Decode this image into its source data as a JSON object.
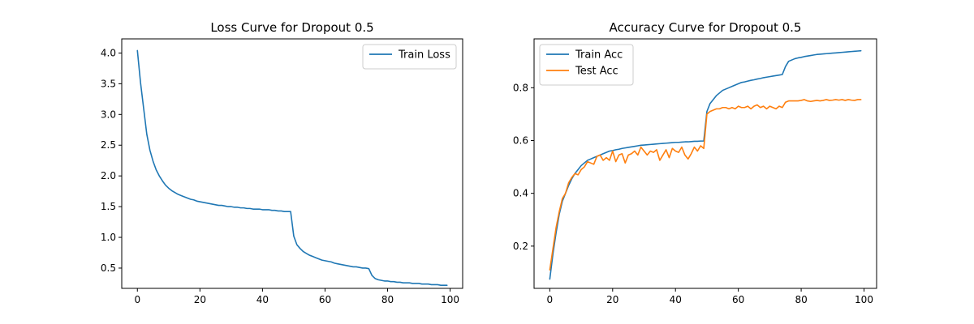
{
  "chart_data": [
    {
      "type": "line",
      "title": "Loss Curve for Dropout 0.5",
      "xlabel": "",
      "ylabel": "",
      "xlim": [
        -5,
        104
      ],
      "ylim": [
        0.17,
        4.23
      ],
      "xticks": [
        0,
        20,
        40,
        60,
        80,
        100
      ],
      "yticks": [
        0.5,
        1.0,
        1.5,
        2.0,
        2.5,
        3.0,
        3.5,
        4.0
      ],
      "ytick_labels": [
        "0.5",
        "1.0",
        "1.5",
        "2.0",
        "2.5",
        "3.0",
        "3.5",
        "4.0"
      ],
      "legend_position": "top-right",
      "series": [
        {
          "name": "Train Loss",
          "color": "#1f77b4",
          "values": [
            4.04,
            3.52,
            3.1,
            2.68,
            2.42,
            2.24,
            2.1,
            2.0,
            1.92,
            1.85,
            1.8,
            1.76,
            1.73,
            1.7,
            1.68,
            1.66,
            1.64,
            1.62,
            1.61,
            1.59,
            1.58,
            1.57,
            1.56,
            1.55,
            1.54,
            1.53,
            1.52,
            1.52,
            1.51,
            1.5,
            1.5,
            1.49,
            1.49,
            1.48,
            1.48,
            1.47,
            1.47,
            1.46,
            1.46,
            1.46,
            1.45,
            1.45,
            1.45,
            1.44,
            1.44,
            1.43,
            1.43,
            1.42,
            1.42,
            1.42,
            1.02,
            0.88,
            0.82,
            0.77,
            0.74,
            0.71,
            0.69,
            0.67,
            0.65,
            0.63,
            0.62,
            0.61,
            0.6,
            0.58,
            0.57,
            0.56,
            0.55,
            0.54,
            0.53,
            0.52,
            0.52,
            0.51,
            0.5,
            0.5,
            0.49,
            0.38,
            0.33,
            0.31,
            0.3,
            0.29,
            0.29,
            0.28,
            0.28,
            0.27,
            0.27,
            0.26,
            0.26,
            0.26,
            0.25,
            0.25,
            0.25,
            0.24,
            0.24,
            0.24,
            0.23,
            0.23,
            0.23,
            0.22,
            0.22,
            0.22
          ]
        }
      ]
    },
    {
      "type": "line",
      "title": "Accuracy Curve for Dropout 0.5",
      "xlabel": "",
      "ylabel": "",
      "xlim": [
        -5,
        104
      ],
      "ylim": [
        0.04,
        0.985
      ],
      "xticks": [
        0,
        20,
        40,
        60,
        80,
        100
      ],
      "yticks": [
        0.2,
        0.4,
        0.6,
        0.8
      ],
      "ytick_labels": [
        "0.2",
        "0.4",
        "0.6",
        "0.8"
      ],
      "legend_position": "top-left",
      "series": [
        {
          "name": "Train Acc",
          "color": "#1f77b4",
          "values": [
            0.075,
            0.17,
            0.25,
            0.32,
            0.37,
            0.4,
            0.43,
            0.455,
            0.475,
            0.49,
            0.505,
            0.515,
            0.525,
            0.53,
            0.535,
            0.54,
            0.545,
            0.55,
            0.555,
            0.56,
            0.562,
            0.565,
            0.567,
            0.57,
            0.572,
            0.574,
            0.576,
            0.578,
            0.58,
            0.582,
            0.583,
            0.584,
            0.585,
            0.586,
            0.587,
            0.588,
            0.589,
            0.59,
            0.591,
            0.592,
            0.593,
            0.593,
            0.594,
            0.595,
            0.595,
            0.596,
            0.597,
            0.597,
            0.598,
            0.598,
            0.71,
            0.74,
            0.755,
            0.77,
            0.78,
            0.79,
            0.795,
            0.8,
            0.805,
            0.81,
            0.815,
            0.82,
            0.822,
            0.825,
            0.828,
            0.83,
            0.833,
            0.835,
            0.838,
            0.84,
            0.842,
            0.844,
            0.846,
            0.848,
            0.85,
            0.88,
            0.9,
            0.905,
            0.91,
            0.913,
            0.915,
            0.918,
            0.92,
            0.922,
            0.924,
            0.926,
            0.927,
            0.928,
            0.929,
            0.93,
            0.931,
            0.932,
            0.933,
            0.934,
            0.935,
            0.936,
            0.937,
            0.938,
            0.939,
            0.94
          ]
        },
        {
          "name": "Test Acc",
          "color": "#ff7f0e",
          "values": [
            0.11,
            0.19,
            0.27,
            0.33,
            0.38,
            0.4,
            0.44,
            0.46,
            0.475,
            0.47,
            0.49,
            0.5,
            0.52,
            0.515,
            0.51,
            0.54,
            0.545,
            0.525,
            0.535,
            0.525,
            0.56,
            0.52,
            0.545,
            0.55,
            0.515,
            0.545,
            0.55,
            0.56,
            0.545,
            0.575,
            0.56,
            0.545,
            0.56,
            0.555,
            0.565,
            0.525,
            0.545,
            0.565,
            0.535,
            0.57,
            0.56,
            0.555,
            0.575,
            0.545,
            0.53,
            0.55,
            0.575,
            0.56,
            0.58,
            0.57,
            0.7,
            0.71,
            0.715,
            0.72,
            0.72,
            0.725,
            0.725,
            0.72,
            0.725,
            0.72,
            0.73,
            0.725,
            0.725,
            0.73,
            0.72,
            0.73,
            0.735,
            0.725,
            0.73,
            0.72,
            0.73,
            0.725,
            0.72,
            0.73,
            0.725,
            0.745,
            0.75,
            0.75,
            0.75,
            0.75,
            0.752,
            0.755,
            0.75,
            0.748,
            0.75,
            0.752,
            0.75,
            0.752,
            0.755,
            0.752,
            0.753,
            0.755,
            0.753,
            0.755,
            0.752,
            0.755,
            0.753,
            0.752,
            0.755,
            0.755
          ]
        }
      ]
    }
  ]
}
